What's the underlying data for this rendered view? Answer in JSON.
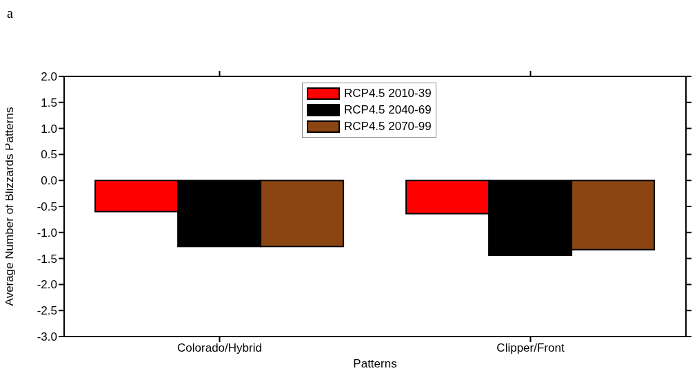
{
  "chart_data": {
    "type": "bar",
    "title": "a",
    "xlabel": "Patterns",
    "ylabel": "Average Number of Blizzards Patterns",
    "categories": [
      "Colorado/Hybrid",
      "Clipper/Front"
    ],
    "series": [
      {
        "name": "RCP4.5 2010-39",
        "color": "#ff0000",
        "values": [
          -0.6,
          -0.64
        ]
      },
      {
        "name": "RCP4.5 2040-69",
        "color": "#000000",
        "values": [
          -1.27,
          -1.44
        ]
      },
      {
        "name": "RCP4.5 2070-99",
        "color": "#8b4513",
        "values": [
          -1.27,
          -1.33
        ]
      }
    ],
    "ylim": [
      -3,
      2
    ],
    "yticks": [
      {
        "value": -3,
        "label": "-3.0"
      },
      {
        "value": -2.5,
        "label": "-2.5"
      },
      {
        "value": -2,
        "label": "-2.0"
      },
      {
        "value": -1.5,
        "label": "-1.5"
      },
      {
        "value": -1,
        "label": "-1.0"
      },
      {
        "value": -0.5,
        "label": "-0.5"
      },
      {
        "value": 0,
        "label": "0.0"
      },
      {
        "value": 0.5,
        "label": "0.5"
      },
      {
        "value": 1,
        "label": "1.0"
      },
      {
        "value": 1.5,
        "label": "1.5"
      },
      {
        "value": 2,
        "label": "2.0"
      }
    ],
    "grid": false,
    "legend": "top"
  }
}
